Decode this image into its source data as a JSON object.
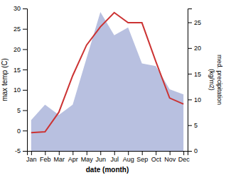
{
  "chart_data": {
    "type": "line",
    "x_label": "date (month)",
    "y_label": "max temp (C)",
    "y2_label": "med. precipitation\n(kg/m2)",
    "categories": [
      "Jan",
      "Feb",
      "Mar",
      "Apr",
      "May",
      "Jun",
      "Jul",
      "Aug",
      "Sep",
      "Oct",
      "Nov",
      "Dec"
    ],
    "series": [
      {
        "type": "area",
        "axis": "y2",
        "color": "#b8c0e0",
        "values": [
          6.0,
          9.0,
          7.0,
          9.0,
          18.0,
          27.0,
          22.5,
          24.0,
          17.0,
          16.5,
          12.0,
          11.0
        ]
      },
      {
        "type": "line",
        "axis": "y",
        "color": "#cc3333",
        "values": [
          -0.5,
          -0.3,
          4.5,
          13.5,
          21.0,
          25.5,
          29.0,
          26.5,
          26.5,
          17.0,
          8.0,
          6.5
        ]
      }
    ],
    "ylim": [
      -5,
      30
    ],
    "yticks": [
      -5,
      0,
      5,
      10,
      15,
      20,
      25,
      30
    ],
    "y2lim": [
      0,
      27.69
    ],
    "y2ticks": [
      0,
      5,
      10,
      15,
      20,
      25
    ],
    "grid": false
  }
}
